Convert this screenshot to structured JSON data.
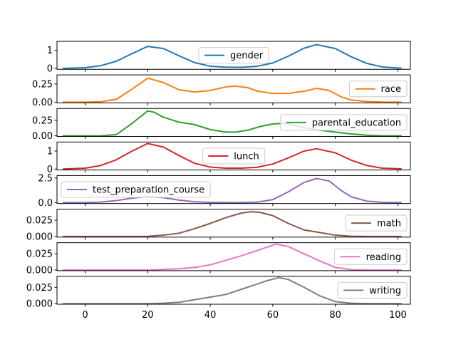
{
  "chart_data": {
    "type": "line",
    "xlim": [
      -9,
      104
    ],
    "x_ticks": [
      0,
      20,
      40,
      60,
      80,
      100
    ],
    "x_tick_labels": [
      "0",
      "20",
      "40",
      "60",
      "80",
      "100"
    ],
    "subplots": [
      {
        "series_name": "gender",
        "color": "#1f77b4",
        "legend_loc": "center",
        "ylim": [
          -0.05,
          1.5
        ],
        "y_ticks": [
          0,
          1
        ],
        "y_tick_labels": [
          "0",
          "1"
        ],
        "x": [
          -7,
          0,
          5,
          10,
          15,
          20,
          25,
          30,
          35,
          40,
          45,
          50,
          55,
          60,
          65,
          70,
          74,
          80,
          85,
          90,
          95,
          101
        ],
        "y": [
          0.0,
          0.04,
          0.15,
          0.4,
          0.82,
          1.22,
          1.1,
          0.7,
          0.32,
          0.12,
          0.07,
          0.06,
          0.12,
          0.3,
          0.68,
          1.12,
          1.32,
          1.1,
          0.65,
          0.28,
          0.08,
          0.01
        ]
      },
      {
        "series_name": "race",
        "color": "#ff7f0e",
        "legend_loc": "center right",
        "ylim": [
          -0.01,
          0.375
        ],
        "y_ticks": [
          0,
          0.25
        ],
        "y_tick_labels": [
          "0.00",
          "0.25"
        ],
        "x": [
          -7,
          0,
          5,
          10,
          15,
          20,
          25,
          30,
          35,
          40,
          45,
          48,
          52,
          55,
          60,
          65,
          70,
          74,
          78,
          82,
          85,
          90,
          95,
          101
        ],
        "y": [
          0.0,
          0.0,
          0.005,
          0.04,
          0.18,
          0.33,
          0.27,
          0.17,
          0.14,
          0.16,
          0.21,
          0.22,
          0.2,
          0.15,
          0.12,
          0.12,
          0.15,
          0.19,
          0.16,
          0.07,
          0.03,
          0.008,
          0.001,
          0.0
        ]
      },
      {
        "series_name": "parental_education",
        "color": "#2ca02c",
        "legend_loc": "center right",
        "ylim": [
          -0.01,
          0.44
        ],
        "y_ticks": [
          0,
          0.25
        ],
        "y_tick_labels": [
          "0.00",
          "0.25"
        ],
        "x": [
          -7,
          0,
          5,
          10,
          15,
          20,
          22,
          25,
          30,
          35,
          40,
          45,
          48,
          52,
          56,
          60,
          63,
          66,
          70,
          75,
          80,
          85,
          90,
          95,
          101
        ],
        "y": [
          0.0,
          0.0,
          0.0,
          0.02,
          0.2,
          0.4,
          0.38,
          0.3,
          0.22,
          0.18,
          0.1,
          0.06,
          0.06,
          0.09,
          0.15,
          0.19,
          0.2,
          0.18,
          0.13,
          0.09,
          0.06,
          0.03,
          0.01,
          0.0,
          0.0
        ]
      },
      {
        "series_name": "lunch",
        "color": "#d62728",
        "legend_loc": "center",
        "ylim": [
          -0.05,
          1.5
        ],
        "y_ticks": [
          0,
          1
        ],
        "y_tick_labels": [
          "0",
          "1"
        ],
        "x": [
          -7,
          0,
          5,
          10,
          15,
          20,
          25,
          30,
          35,
          40,
          45,
          50,
          55,
          60,
          65,
          70,
          74,
          80,
          85,
          90,
          95,
          101
        ],
        "y": [
          0.0,
          0.05,
          0.2,
          0.52,
          1.0,
          1.42,
          1.22,
          0.75,
          0.32,
          0.11,
          0.05,
          0.05,
          0.1,
          0.28,
          0.62,
          1.0,
          1.13,
          0.9,
          0.5,
          0.2,
          0.05,
          0.01
        ]
      },
      {
        "series_name": "test_preparation_course",
        "color": "#9467bd",
        "legend_loc": "center left",
        "ylim": [
          -0.1,
          2.75
        ],
        "y_ticks": [
          0,
          2.5
        ],
        "y_tick_labels": [
          "0.0",
          "2.5"
        ],
        "x": [
          -7,
          0,
          5,
          10,
          15,
          20,
          25,
          30,
          35,
          40,
          45,
          50,
          55,
          60,
          65,
          70,
          74,
          78,
          82,
          85,
          90,
          95,
          101
        ],
        "y": [
          0.0,
          0.0,
          0.05,
          0.2,
          0.45,
          0.62,
          0.5,
          0.25,
          0.08,
          0.02,
          0.0,
          0.0,
          0.04,
          0.3,
          1.1,
          2.05,
          2.45,
          2.2,
          1.2,
          0.6,
          0.15,
          0.02,
          0.0
        ]
      },
      {
        "series_name": "math",
        "color": "#8c564b",
        "legend_loc": "center right",
        "ylim": [
          -0.001,
          0.042
        ],
        "y_ticks": [
          0,
          0.025
        ],
        "y_tick_labels": [
          "0.000",
          "0.025"
        ],
        "x": [
          -7,
          0,
          10,
          20,
          25,
          30,
          35,
          40,
          45,
          50,
          53,
          56,
          60,
          65,
          70,
          75,
          80,
          85,
          90,
          95,
          101
        ],
        "y": [
          0.0,
          0.0,
          0.0,
          0.0002,
          0.002,
          0.005,
          0.012,
          0.02,
          0.029,
          0.036,
          0.038,
          0.037,
          0.032,
          0.02,
          0.01,
          0.006,
          0.002,
          0.0003,
          0.0,
          0.0,
          0.0
        ]
      },
      {
        "series_name": "reading",
        "color": "#e377c2",
        "legend_loc": "center right",
        "ylim": [
          -0.001,
          0.042
        ],
        "y_ticks": [
          0,
          0.025
        ],
        "y_tick_labels": [
          "0.000",
          "0.025"
        ],
        "x": [
          -7,
          0,
          10,
          20,
          25,
          30,
          35,
          40,
          45,
          50,
          55,
          58,
          61,
          65,
          70,
          75,
          80,
          85,
          90,
          95,
          101
        ],
        "y": [
          0.0,
          0.0,
          0.0,
          0.0,
          0.001,
          0.002,
          0.004,
          0.008,
          0.015,
          0.022,
          0.03,
          0.035,
          0.04,
          0.036,
          0.025,
          0.014,
          0.004,
          0.0007,
          0.0,
          0.0,
          0.0
        ]
      },
      {
        "series_name": "writing",
        "color": "#7f7f7f",
        "legend_loc": "center right",
        "ylim": [
          -0.001,
          0.042
        ],
        "y_ticks": [
          0,
          0.025
        ],
        "y_tick_labels": [
          "0.000",
          "0.025"
        ],
        "x": [
          -7,
          0,
          10,
          20,
          25,
          30,
          35,
          40,
          45,
          50,
          55,
          58,
          62,
          65,
          70,
          75,
          80,
          85,
          90,
          95,
          101
        ],
        "y": [
          0.0,
          0.0,
          0.0,
          0.0,
          0.0005,
          0.002,
          0.006,
          0.01,
          0.014,
          0.022,
          0.03,
          0.035,
          0.04,
          0.037,
          0.025,
          0.012,
          0.003,
          0.0005,
          0.0,
          0.0,
          0.0
        ]
      }
    ]
  }
}
